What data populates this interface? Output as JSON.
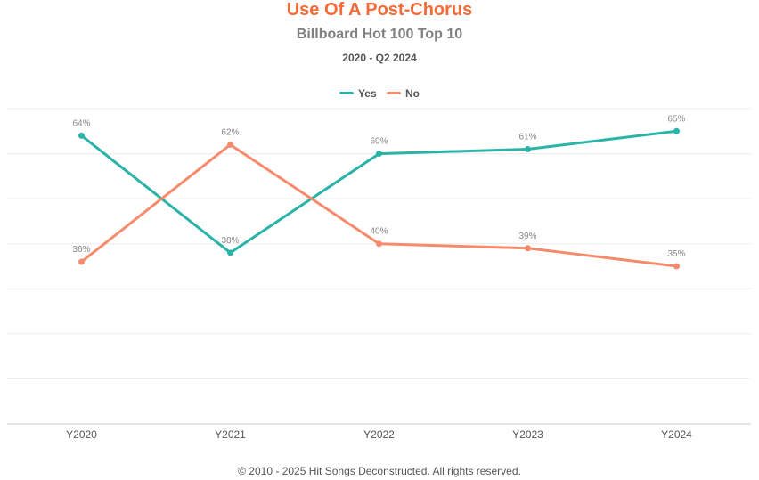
{
  "colors": {
    "title": "#f26b38",
    "grid": "#ececec",
    "axis": "#cccccc"
  },
  "footer": "© 2010 - 2025 Hit Songs Deconstructed. All rights reserved.",
  "chart_data": {
    "type": "line",
    "title": "Use Of A Post-Chorus",
    "subtitle": "Billboard Hot 100 Top 10",
    "date_range": "2020 - Q2 2024",
    "categories": [
      "Y2020",
      "Y2021",
      "Y2022",
      "Y2023",
      "Y2024"
    ],
    "series": [
      {
        "name": "Yes",
        "color": "#2bb3a8",
        "values": [
          64,
          38,
          60,
          61,
          65
        ],
        "labels": [
          "64%",
          "38%",
          "60%",
          "61%",
          "65%"
        ]
      },
      {
        "name": "No",
        "color": "#f58b6c",
        "values": [
          36,
          62,
          40,
          39,
          35
        ],
        "labels": [
          "36%",
          "62%",
          "40%",
          "39%",
          "35%"
        ]
      }
    ],
    "ylim": [
      0,
      70
    ],
    "grid": true,
    "legend_position": "top-center",
    "xlabel": "",
    "ylabel": ""
  }
}
